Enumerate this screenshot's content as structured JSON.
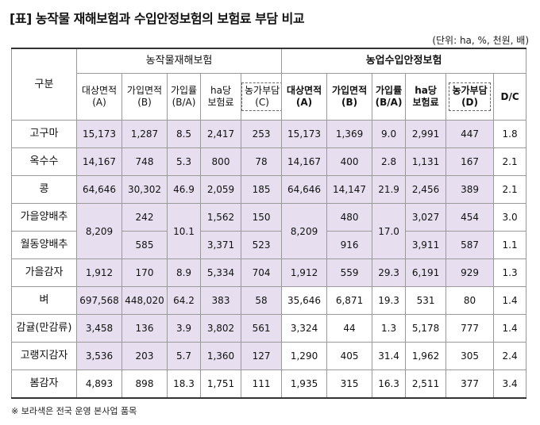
{
  "title": "[표] 농작물 재해보험과 수입안정보험의 보험료 부담 비교",
  "unit": "(단위: ha, %, 천원, 배)",
  "header": {
    "gubun": "구분",
    "group1": "농작물재해보험",
    "group2": "농업수입안정보험",
    "g1": {
      "c1": [
        "대상면적",
        "(A)"
      ],
      "c2": [
        "가입면적",
        "(B)"
      ],
      "c3": [
        "가입률",
        "(B/A)"
      ],
      "c4": [
        "ha당",
        "보험료"
      ],
      "c5": [
        "농가부담",
        "(C)"
      ]
    },
    "g2": {
      "c1": [
        "대상면적",
        "(A)"
      ],
      "c2": [
        "가입면적",
        "(B)"
      ],
      "c3": [
        "가입률",
        "(B/A)"
      ],
      "c4": [
        "ha당",
        "보험료"
      ],
      "c5": [
        "농가부담",
        "(D)"
      ],
      "c6": "D/C"
    }
  },
  "rows": [
    {
      "name": "고구마",
      "v": [
        "15,173",
        "1,287",
        "8.5",
        "2,417",
        "253",
        "15,173",
        "1,369",
        "9.0",
        "2,991",
        "447",
        "1.8"
      ]
    },
    {
      "name": "옥수수",
      "v": [
        "14,167",
        "748",
        "5.3",
        "800",
        "78",
        "14,167",
        "400",
        "2.8",
        "1,131",
        "167",
        "2.1"
      ]
    },
    {
      "name": "콩",
      "v": [
        "64,646",
        "30,302",
        "46.9",
        "2,059",
        "185",
        "64,646",
        "14,147",
        "21.9",
        "2,456",
        "389",
        "2.1"
      ]
    },
    {
      "name": "가을감자",
      "v": [
        "1,912",
        "170",
        "8.9",
        "5,334",
        "704",
        "1,912",
        "559",
        "29.3",
        "6,191",
        "929",
        "1.3"
      ]
    },
    {
      "name": "벼",
      "v": [
        "697,568",
        "448,020",
        "64.2",
        "383",
        "58",
        "35,646",
        "6,871",
        "19.3",
        "531",
        "80",
        "1.4"
      ]
    },
    {
      "name": "감귤(만감류)",
      "v": [
        "3,458",
        "136",
        "3.9",
        "3,802",
        "561",
        "3,324",
        "44",
        "1.3",
        "5,178",
        "777",
        "1.4"
      ]
    },
    {
      "name": "고랭지감자",
      "v": [
        "3,536",
        "203",
        "5.7",
        "1,360",
        "127",
        "1,290",
        "405",
        "31.4",
        "1,962",
        "305",
        "2.4"
      ]
    },
    {
      "name": "봄감자",
      "v": [
        "4,893",
        "898",
        "18.3",
        "1,751",
        "111",
        "1,935",
        "315",
        "16.3",
        "2,511",
        "377",
        "3.4"
      ]
    }
  ],
  "merged": {
    "rowA": {
      "name": "가을양배추",
      "b1": "242",
      "d1": "1,562",
      "e1": "150",
      "b2": "480",
      "d2": "3,027",
      "e2": "454",
      "f": "3.0"
    },
    "rowB": {
      "name": "월동양배추",
      "b1": "585",
      "d1": "3,371",
      "e1": "523",
      "b2": "916",
      "d2": "3,911",
      "e2": "587",
      "f": "1.1"
    },
    "a1": "8,209",
    "c1": "10.1",
    "a2": "8,209",
    "c2": "17.0"
  },
  "note": "※ 보라색은 전국 운영 본사업 품목",
  "colors": {
    "highlight": "#e7dff0",
    "border": "#9a9a9a"
  }
}
